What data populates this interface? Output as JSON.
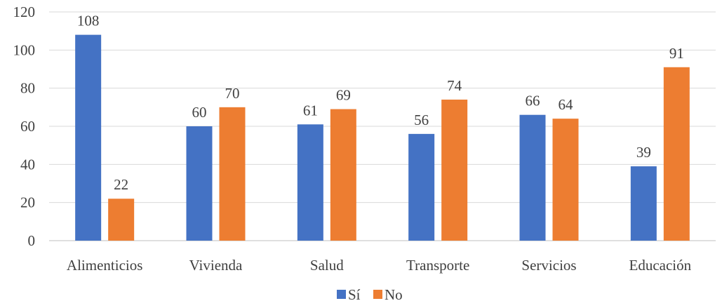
{
  "chart_data": {
    "type": "bar",
    "categories": [
      "Alimenticios",
      "Vivienda",
      "Salud",
      "Transporte",
      "Servicios",
      "Educación"
    ],
    "series": [
      {
        "name": "Sí",
        "color": "#4472C4",
        "values": [
          108,
          60,
          61,
          56,
          66,
          39
        ]
      },
      {
        "name": "No",
        "color": "#ED7D31",
        "values": [
          22,
          70,
          69,
          74,
          64,
          91
        ]
      }
    ],
    "title": "",
    "xlabel": "",
    "ylabel": "",
    "ylim": [
      0,
      120
    ],
    "yticks": [
      0,
      20,
      40,
      60,
      80,
      100,
      120
    ],
    "grid": true,
    "data_labels": true,
    "legend_position": "bottom"
  }
}
